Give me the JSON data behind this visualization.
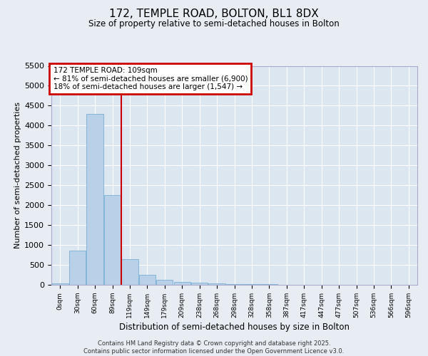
{
  "title": "172, TEMPLE ROAD, BOLTON, BL1 8DX",
  "subtitle": "Size of property relative to semi-detached houses in Bolton",
  "xlabel": "Distribution of semi-detached houses by size in Bolton",
  "ylabel": "Number of semi-detached properties",
  "categories": [
    "0sqm",
    "30sqm",
    "60sqm",
    "89sqm",
    "119sqm",
    "149sqm",
    "179sqm",
    "209sqm",
    "238sqm",
    "268sqm",
    "298sqm",
    "328sqm",
    "358sqm",
    "387sqm",
    "417sqm",
    "447sqm",
    "477sqm",
    "507sqm",
    "536sqm",
    "566sqm",
    "596sqm"
  ],
  "values": [
    30,
    850,
    4300,
    2250,
    650,
    250,
    120,
    75,
    60,
    35,
    20,
    15,
    10,
    5,
    5,
    3,
    2,
    1,
    1,
    0,
    0
  ],
  "bar_color": "#b8d0e8",
  "bar_edge_color": "#7aafd4",
  "vline_x": 3.5,
  "vline_color": "#cc0000",
  "annotation_title": "172 TEMPLE ROAD: 109sqm",
  "annotation_line1": "← 81% of semi-detached houses are smaller (6,900)",
  "annotation_line2": "18% of semi-detached houses are larger (1,547) →",
  "annotation_box_color": "#cc0000",
  "ylim": [
    0,
    5500
  ],
  "yticks": [
    0,
    500,
    1000,
    1500,
    2000,
    2500,
    3000,
    3500,
    4000,
    4500,
    5000,
    5500
  ],
  "bg_color": "#e8edf4",
  "plot_bg_color": "#dce6f0",
  "grid_color": "#ffffff",
  "footer_line1": "Contains HM Land Registry data © Crown copyright and database right 2025.",
  "footer_line2": "Contains public sector information licensed under the Open Government Licence v3.0."
}
